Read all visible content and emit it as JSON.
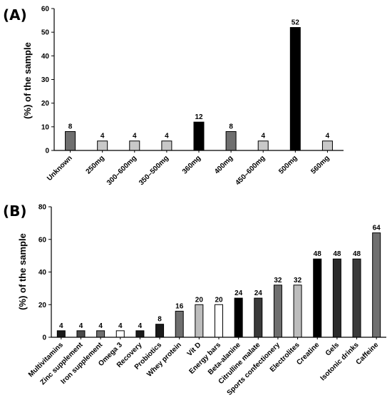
{
  "chart_data": [
    {
      "type": "bar",
      "panel_label": "(A)",
      "ylabel": "(%) of the sample",
      "ylim": [
        0,
        60
      ],
      "yticks": [
        0,
        10,
        20,
        30,
        40,
        50,
        60
      ],
      "grid": false,
      "categories": [
        "Unknown",
        "250mg",
        "300–600mg",
        "350–500mg",
        "360mg",
        "400mg",
        "450–600mg",
        "500mg",
        "560mg"
      ],
      "values": [
        8,
        4,
        4,
        4,
        12,
        8,
        4,
        52,
        4
      ],
      "data_labels": [
        "8",
        "4",
        "4",
        "4",
        "12",
        "8",
        "4",
        "52",
        "4"
      ],
      "colors": [
        "#6f6f6f",
        "#c8c8c8",
        "#c8c8c8",
        "#c8c8c8",
        "#000000",
        "#6f6f6f",
        "#c8c8c8",
        "#000000",
        "#c8c8c8"
      ]
    },
    {
      "type": "bar",
      "panel_label": "(B)",
      "ylabel": "(%) of the sample",
      "ylim": [
        0,
        80
      ],
      "yticks": [
        0,
        20,
        40,
        60,
        80
      ],
      "grid": false,
      "categories": [
        "Multivitamins",
        "Zinc supplement",
        "Iron supplement",
        "Omega 3",
        "Recovery",
        "Probiotics",
        "Whey protein",
        "Vit D",
        "Energy bars",
        "Beta-alanine",
        "Citrulline malate",
        "Sports confectionery",
        "Electrolites",
        "Creatine",
        "Gels",
        "Isotonic drinks",
        "Caffeine"
      ],
      "values": [
        4,
        4,
        4,
        4,
        4,
        8,
        16,
        20,
        20,
        24,
        24,
        32,
        32,
        48,
        48,
        48,
        64
      ],
      "data_labels": [
        "4",
        "4",
        "4",
        "4",
        "4",
        "8",
        "16",
        "20",
        "20",
        "24",
        "24",
        "32",
        "32",
        "48",
        "48",
        "48",
        "64"
      ],
      "colors": [
        "#1a1a1a",
        "#4a4a4a",
        "#6f6f6f",
        "#ffffff",
        "#1a1a1a",
        "#1a1a1a",
        "#6f6f6f",
        "#bdbdbd",
        "#ffffff",
        "#000000",
        "#3a3a3a",
        "#6f6f6f",
        "#bdbdbd",
        "#000000",
        "#2a2a2a",
        "#3a3a3a",
        "#6f6f6f"
      ]
    }
  ]
}
